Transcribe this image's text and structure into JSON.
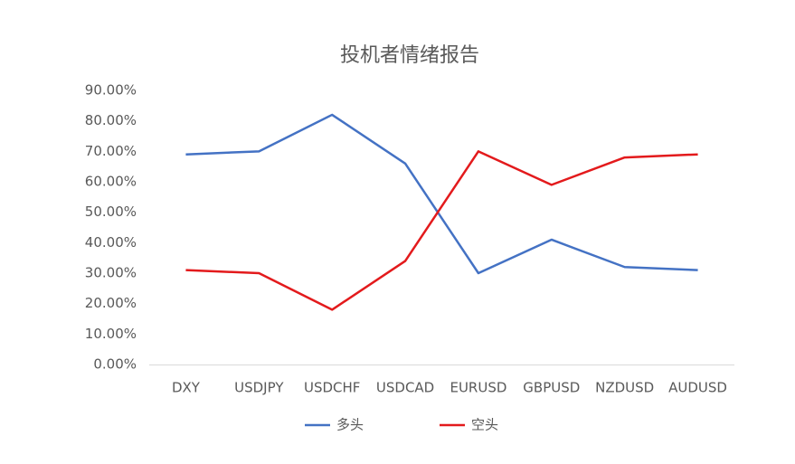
{
  "chart_data": {
    "type": "line",
    "title": "投机者情绪报告",
    "categories": [
      "DXY",
      "USDJPY",
      "USDCHF",
      "USDCAD",
      "EURUSD",
      "GBPUSD",
      "NZDUSD",
      "AUDUSD"
    ],
    "series": [
      {
        "name": "多头",
        "color": "#4472c4",
        "values": [
          69,
          70,
          82,
          66,
          30,
          41,
          32,
          31
        ]
      },
      {
        "name": "空头",
        "color": "#e31a1c",
        "values": [
          31,
          30,
          18,
          34,
          70,
          59,
          68,
          69
        ]
      }
    ],
    "ylim": [
      0,
      90
    ],
    "yticks": [
      {
        "value": 0,
        "label": "0.00%"
      },
      {
        "value": 10,
        "label": "10.00%"
      },
      {
        "value": 20,
        "label": "20.00%"
      },
      {
        "value": 30,
        "label": "30.00%"
      },
      {
        "value": 40,
        "label": "40.00%"
      },
      {
        "value": 50,
        "label": "50.00%"
      },
      {
        "value": 60,
        "label": "60.00%"
      },
      {
        "value": 70,
        "label": "70.00%"
      },
      {
        "value": 80,
        "label": "80.00%"
      },
      {
        "value": 90,
        "label": "90.00%"
      }
    ],
    "grid": false,
    "legend": "bottom"
  }
}
